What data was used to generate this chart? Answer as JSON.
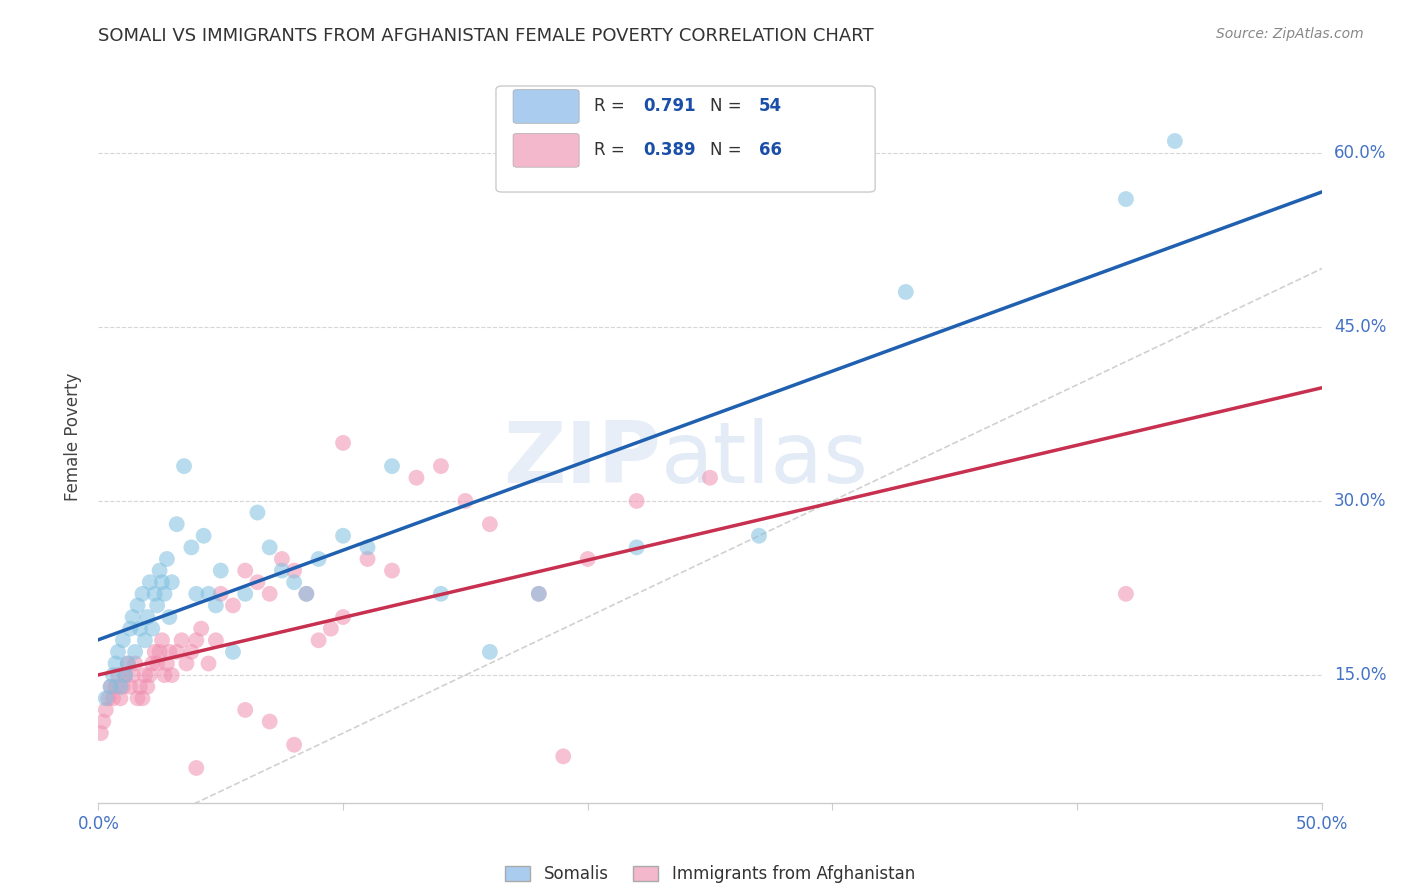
{
  "title": "SOMALI VS IMMIGRANTS FROM AFGHANISTAN FEMALE POVERTY CORRELATION CHART",
  "source": "Source: ZipAtlas.com",
  "ylabel": "Female Poverty",
  "legend_bottom": [
    "Somalis",
    "Immigrants from Afghanistan"
  ],
  "xlim": [
    0.0,
    0.5
  ],
  "ylim": [
    0.04,
    0.67
  ],
  "ytick_values": [
    0.15,
    0.3,
    0.45,
    0.6
  ],
  "xtick_values": [
    0.0,
    0.1,
    0.2,
    0.3,
    0.4,
    0.5
  ],
  "somali_R": 0.791,
  "somali_N": 54,
  "afghan_R": 0.389,
  "afghan_N": 66,
  "somali_color": "#7fbfdf",
  "afghan_color": "#f090b0",
  "somali_line_color": "#2060b0",
  "afghan_line_color": "#c83050",
  "diagonal_color": "#cccccc",
  "legend_somali_color": "#aaccee",
  "legend_afghan_color": "#f4b8cc",
  "background_color": "#ffffff",
  "grid_color": "#cccccc",
  "title_color": "#333333",
  "axis_label_color": "#4472c4",
  "watermark_color1": "#dde8f5",
  "watermark_color2": "#c8d8ee",
  "r_text_color": "#333333",
  "r_value_color": "#1a4fa8",
  "somali_x": [
    0.003,
    0.005,
    0.006,
    0.007,
    0.008,
    0.009,
    0.01,
    0.011,
    0.012,
    0.013,
    0.014,
    0.015,
    0.016,
    0.017,
    0.018,
    0.019,
    0.02,
    0.021,
    0.022,
    0.023,
    0.024,
    0.025,
    0.026,
    0.027,
    0.028,
    0.029,
    0.03,
    0.032,
    0.035,
    0.038,
    0.04,
    0.043,
    0.045,
    0.048,
    0.05,
    0.055,
    0.06,
    0.065,
    0.07,
    0.075,
    0.08,
    0.085,
    0.09,
    0.1,
    0.11,
    0.12,
    0.14,
    0.16,
    0.18,
    0.22,
    0.27,
    0.33,
    0.42,
    0.44
  ],
  "somali_y": [
    0.13,
    0.14,
    0.15,
    0.16,
    0.17,
    0.14,
    0.18,
    0.15,
    0.16,
    0.19,
    0.2,
    0.17,
    0.21,
    0.19,
    0.22,
    0.18,
    0.2,
    0.23,
    0.19,
    0.22,
    0.21,
    0.24,
    0.23,
    0.22,
    0.25,
    0.2,
    0.23,
    0.28,
    0.33,
    0.26,
    0.22,
    0.27,
    0.22,
    0.21,
    0.24,
    0.17,
    0.22,
    0.29,
    0.26,
    0.24,
    0.23,
    0.22,
    0.25,
    0.27,
    0.26,
    0.33,
    0.22,
    0.17,
    0.22,
    0.26,
    0.27,
    0.48,
    0.56,
    0.61
  ],
  "afghan_x": [
    0.001,
    0.002,
    0.003,
    0.004,
    0.005,
    0.006,
    0.007,
    0.008,
    0.009,
    0.01,
    0.011,
    0.012,
    0.013,
    0.014,
    0.015,
    0.016,
    0.017,
    0.018,
    0.019,
    0.02,
    0.021,
    0.022,
    0.023,
    0.024,
    0.025,
    0.026,
    0.027,
    0.028,
    0.029,
    0.03,
    0.032,
    0.034,
    0.036,
    0.038,
    0.04,
    0.042,
    0.045,
    0.048,
    0.05,
    0.055,
    0.06,
    0.065,
    0.07,
    0.075,
    0.08,
    0.085,
    0.09,
    0.095,
    0.1,
    0.11,
    0.12,
    0.14,
    0.16,
    0.18,
    0.22,
    0.1,
    0.13,
    0.15,
    0.25,
    0.2,
    0.07,
    0.08,
    0.19,
    0.06,
    0.04,
    0.42
  ],
  "afghan_y": [
    0.1,
    0.11,
    0.12,
    0.13,
    0.14,
    0.13,
    0.14,
    0.15,
    0.13,
    0.14,
    0.15,
    0.16,
    0.14,
    0.15,
    0.16,
    0.13,
    0.14,
    0.13,
    0.15,
    0.14,
    0.15,
    0.16,
    0.17,
    0.16,
    0.17,
    0.18,
    0.15,
    0.16,
    0.17,
    0.15,
    0.17,
    0.18,
    0.16,
    0.17,
    0.18,
    0.19,
    0.16,
    0.18,
    0.22,
    0.21,
    0.24,
    0.23,
    0.22,
    0.25,
    0.24,
    0.22,
    0.18,
    0.19,
    0.2,
    0.25,
    0.24,
    0.33,
    0.28,
    0.22,
    0.3,
    0.35,
    0.32,
    0.3,
    0.32,
    0.25,
    0.11,
    0.09,
    0.08,
    0.12,
    0.07,
    0.22
  ]
}
